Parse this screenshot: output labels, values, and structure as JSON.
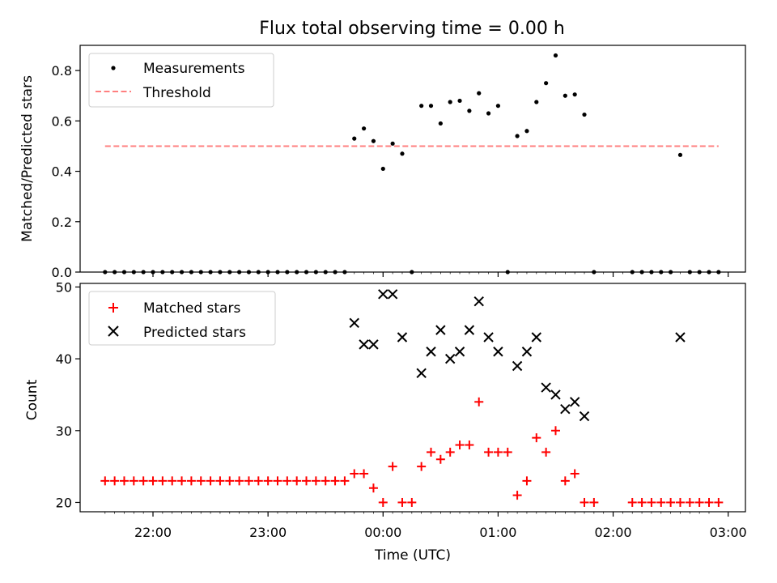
{
  "chart_data": {
    "title": "Flux total observing time = 0.00 h",
    "xlabel": "Time (UTC)",
    "x_unit": "time (UTC)",
    "x_ticks": [
      "22:00",
      "23:00",
      "00:00",
      "01:00",
      "02:00",
      "03:00"
    ],
    "xlim": [
      "21:22",
      "03:09"
    ],
    "time_grid": [
      "21:35",
      "21:40",
      "21:45",
      "21:50",
      "21:55",
      "22:00",
      "22:05",
      "22:10",
      "22:15",
      "22:20",
      "22:25",
      "22:30",
      "22:35",
      "22:40",
      "22:45",
      "22:50",
      "22:55",
      "23:00",
      "23:05",
      "23:10",
      "23:15",
      "23:20",
      "23:25",
      "23:30",
      "23:35",
      "23:40",
      "23:45",
      "23:50",
      "23:55",
      "00:00",
      "00:05",
      "00:10",
      "00:15",
      "00:20",
      "00:25",
      "00:30",
      "00:35",
      "00:40",
      "00:45",
      "00:50",
      "00:55",
      "01:00",
      "01:05",
      "01:10",
      "01:15",
      "01:20",
      "01:25",
      "01:30",
      "01:35",
      "01:40",
      "01:45",
      "01:50",
      "01:55",
      "02:00",
      "02:05",
      "02:10",
      "02:15",
      "02:20",
      "02:25",
      "02:30",
      "02:35",
      "02:40",
      "02:45",
      "02:50"
    ],
    "panels": [
      {
        "type": "scatter",
        "ylabel": "Matched/Predicted stars",
        "ylim": [
          0.0,
          0.9
        ],
        "y_ticks": [
          "0.0",
          "0.2",
          "0.4",
          "0.6",
          "0.8"
        ],
        "legend": "upper left",
        "series": [
          {
            "name": "Measurements",
            "marker": "dot",
            "color": "#000000",
            "points": [
              [
                "21:35",
                0.0
              ],
              [
                "21:40",
                0.0
              ],
              [
                "21:45",
                0.0
              ],
              [
                "21:50",
                0.0
              ],
              [
                "21:55",
                0.0
              ],
              [
                "22:00",
                0.0
              ],
              [
                "22:05",
                0.0
              ],
              [
                "22:10",
                0.0
              ],
              [
                "22:15",
                0.0
              ],
              [
                "22:20",
                0.0
              ],
              [
                "22:25",
                0.0
              ],
              [
                "22:30",
                0.0
              ],
              [
                "22:35",
                0.0
              ],
              [
                "22:40",
                0.0
              ],
              [
                "22:45",
                0.0
              ],
              [
                "22:50",
                0.0
              ],
              [
                "22:55",
                0.0
              ],
              [
                "23:00",
                0.0
              ],
              [
                "23:05",
                0.0
              ],
              [
                "23:10",
                0.0
              ],
              [
                "23:15",
                0.0
              ],
              [
                "23:20",
                0.0
              ],
              [
                "23:25",
                0.0
              ],
              [
                "23:30",
                0.0
              ],
              [
                "23:35",
                0.0
              ],
              [
                "23:40",
                0.0
              ],
              [
                "23:45",
                0.53
              ],
              [
                "23:50",
                0.57
              ],
              [
                "23:55",
                0.52
              ],
              [
                "00:00",
                0.41
              ],
              [
                "00:05",
                0.51
              ],
              [
                "00:10",
                0.47
              ],
              [
                "00:15",
                0.0
              ],
              [
                "00:20",
                0.66
              ],
              [
                "00:25",
                0.66
              ],
              [
                "00:30",
                0.59
              ],
              [
                "00:35",
                0.675
              ],
              [
                "00:40",
                0.68
              ],
              [
                "00:45",
                0.64
              ],
              [
                "00:50",
                0.71
              ],
              [
                "00:55",
                0.63
              ],
              [
                "01:00",
                0.66
              ],
              [
                "01:05",
                0.0
              ],
              [
                "01:10",
                0.54
              ],
              [
                "01:15",
                0.56
              ],
              [
                "01:20",
                0.675
              ],
              [
                "01:25",
                0.75
              ],
              [
                "01:30",
                0.86
              ],
              [
                "01:35",
                0.7
              ],
              [
                "01:40",
                0.705
              ],
              [
                "01:45",
                0.625
              ],
              [
                "01:50",
                0.0
              ],
              [
                "02:10",
                0.0
              ],
              [
                "02:15",
                0.0
              ],
              [
                "02:20",
                0.0
              ],
              [
                "02:25",
                0.0
              ],
              [
                "02:30",
                0.0
              ],
              [
                "02:35",
                0.465
              ],
              [
                "02:40",
                0.0
              ],
              [
                "02:45",
                0.0
              ],
              [
                "02:50",
                0.0
              ],
              [
                "02:55",
                0.0
              ]
            ]
          },
          {
            "name": "Threshold",
            "marker": "dashed-line",
            "color": "#ff7f7f",
            "x": [
              "21:35",
              "02:55"
            ],
            "y": [
              0.5,
              0.5
            ]
          }
        ]
      },
      {
        "type": "scatter",
        "ylabel": "Count",
        "ylim": [
          18.7,
          50.5
        ],
        "y_ticks": [
          "20",
          "30",
          "40",
          "50"
        ],
        "legend": "upper left",
        "series": [
          {
            "name": "Matched stars",
            "marker": "plus",
            "color": "#ff0000",
            "points": [
              [
                "21:35",
                23
              ],
              [
                "21:40",
                23
              ],
              [
                "21:45",
                23
              ],
              [
                "21:50",
                23
              ],
              [
                "21:55",
                23
              ],
              [
                "22:00",
                23
              ],
              [
                "22:05",
                23
              ],
              [
                "22:10",
                23
              ],
              [
                "22:15",
                23
              ],
              [
                "22:20",
                23
              ],
              [
                "22:25",
                23
              ],
              [
                "22:30",
                23
              ],
              [
                "22:35",
                23
              ],
              [
                "22:40",
                23
              ],
              [
                "22:45",
                23
              ],
              [
                "22:50",
                23
              ],
              [
                "22:55",
                23
              ],
              [
                "23:00",
                23
              ],
              [
                "23:05",
                23
              ],
              [
                "23:10",
                23
              ],
              [
                "23:15",
                23
              ],
              [
                "23:20",
                23
              ],
              [
                "23:25",
                23
              ],
              [
                "23:30",
                23
              ],
              [
                "23:35",
                23
              ],
              [
                "23:40",
                23
              ],
              [
                "23:45",
                24
              ],
              [
                "23:50",
                24
              ],
              [
                "23:55",
                22
              ],
              [
                "00:00",
                20
              ],
              [
                "00:05",
                25
              ],
              [
                "00:10",
                20
              ],
              [
                "00:15",
                20
              ],
              [
                "00:20",
                25
              ],
              [
                "00:25",
                27
              ],
              [
                "00:30",
                26
              ],
              [
                "00:35",
                27
              ],
              [
                "00:40",
                28
              ],
              [
                "00:45",
                28
              ],
              [
                "00:50",
                34
              ],
              [
                "00:55",
                27
              ],
              [
                "01:00",
                27
              ],
              [
                "01:05",
                27
              ],
              [
                "01:10",
                21
              ],
              [
                "01:15",
                23
              ],
              [
                "01:20",
                29
              ],
              [
                "01:25",
                27
              ],
              [
                "01:30",
                30
              ],
              [
                "01:35",
                23
              ],
              [
                "01:40",
                24
              ],
              [
                "01:45",
                20
              ],
              [
                "01:50",
                20
              ],
              [
                "02:10",
                20
              ],
              [
                "02:15",
                20
              ],
              [
                "02:20",
                20
              ],
              [
                "02:25",
                20
              ],
              [
                "02:30",
                20
              ],
              [
                "02:35",
                20
              ],
              [
                "02:40",
                20
              ],
              [
                "02:45",
                20
              ],
              [
                "02:50",
                20
              ],
              [
                "02:55",
                20
              ]
            ]
          },
          {
            "name": "Predicted stars",
            "marker": "x",
            "color": "#000000",
            "points": [
              [
                "23:45",
                45
              ],
              [
                "23:50",
                42
              ],
              [
                "23:55",
                42
              ],
              [
                "00:00",
                49
              ],
              [
                "00:05",
                49
              ],
              [
                "00:10",
                43
              ],
              [
                "00:20",
                38
              ],
              [
                "00:25",
                41
              ],
              [
                "00:30",
                44
              ],
              [
                "00:35",
                40
              ],
              [
                "00:40",
                41
              ],
              [
                "00:45",
                44
              ],
              [
                "00:50",
                48
              ],
              [
                "00:55",
                43
              ],
              [
                "01:00",
                41
              ],
              [
                "01:10",
                39
              ],
              [
                "01:15",
                41
              ],
              [
                "01:20",
                43
              ],
              [
                "01:25",
                36
              ],
              [
                "01:30",
                35
              ],
              [
                "01:35",
                33
              ],
              [
                "01:40",
                34
              ],
              [
                "01:45",
                32
              ],
              [
                "02:35",
                43
              ]
            ]
          }
        ]
      }
    ]
  }
}
